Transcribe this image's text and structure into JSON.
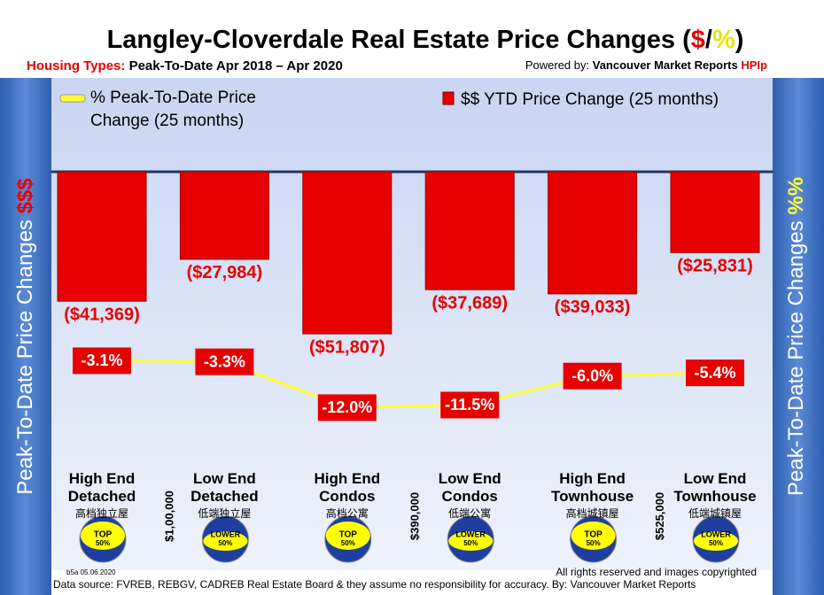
{
  "chart_data": {
    "type": "bar-line",
    "title": "Langley-Cloverdale Real Estate Price Changes (",
    "title_dollar": "$",
    "title_slash": "/",
    "title_percent": "%",
    "title_close": ")",
    "subtitle_label": "Housing Types:",
    "subtitle": "Peak-To-Date Apr 2018 – Apr 2020",
    "powered_label": "Powered by:",
    "powered_name": "Vancouver Market Reports",
    "powered_brand": "HPIp",
    "left_axis_label": "Peak-To-Date Price Changes",
    "left_axis_symbol": "$$$",
    "right_axis_label": "Peak-To-Date  Price  Changes",
    "right_axis_symbol": "%%",
    "categories": [
      "High End Detached",
      "Low End Detached",
      "High End Condos",
      "Low End Condos",
      "High End Townhouse",
      "Low End Townhouse"
    ],
    "categories_cn": [
      "高档独立屋",
      "低端独立屋",
      "高档公寓",
      "低端公寓",
      "高档城镇屋",
      "低端城镇屋"
    ],
    "badges": [
      [
        "TOP",
        "50%"
      ],
      [
        "LOWER",
        "50%"
      ],
      [
        "TOP",
        "50%"
      ],
      [
        "LOWER",
        "50%"
      ],
      [
        "TOP",
        "50%"
      ],
      [
        "LOWER",
        "50%"
      ]
    ],
    "thresholds": [
      "$1,00,000",
      "$390,000",
      "$525,000"
    ],
    "series": [
      {
        "name": "$$ YTD Price Change (25 months)",
        "type": "bar",
        "color": "#e60000",
        "values": [
          -41369,
          -27984,
          -51807,
          -37689,
          -39033,
          -25831
        ],
        "value_labels": [
          "($41,369)",
          "($27,984)",
          "($51,807)",
          "($37,689)",
          "($39,033)",
          "($25,831)"
        ]
      },
      {
        "name": "% Peak-To-Date Price Change (25 months)",
        "type": "line",
        "axis": "y2",
        "color": "#ffff33",
        "values": [
          -3.1,
          -3.3,
          -12.0,
          -11.5,
          -6.0,
          -5.4
        ],
        "value_labels": [
          "-3.1%",
          "-3.3%",
          "-12.0%",
          "-11.5%",
          "-6.0%",
          "-5.4%"
        ]
      }
    ],
    "ylim": [
      -60000,
      0
    ],
    "y2lim": [
      -20,
      0
    ],
    "footer_code": "b5a 05.06.2020",
    "copyright": "All rights reserved and  images copyrighted",
    "source": "Data source: FVREB, REBGV, CADREB Real Estate Board & they assume no responsibility for accuracy. By: Vancouver Market Reports"
  }
}
